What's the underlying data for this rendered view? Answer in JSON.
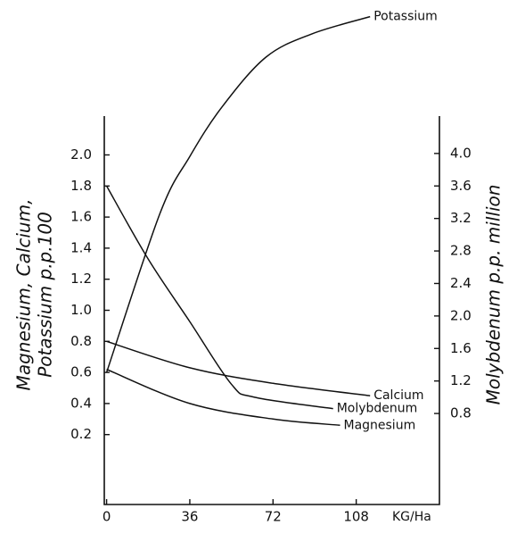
{
  "chart_data": {
    "type": "line",
    "xlabel": "KG/Ha",
    "ylabel": [
      "Magnesium, Calcium,",
      "Potassium  p.p.100"
    ],
    "y2label": "Molybdenum  p.p. million",
    "xlim": [
      -1,
      144
    ],
    "xticks": [
      0,
      36,
      72,
      108
    ],
    "ylim": [
      -0.25,
      2.25
    ],
    "yticks": [
      0.2,
      0.4,
      0.6,
      0.8,
      {
        "value": 1,
        "label": "1.0"
      },
      1.2,
      1.4,
      1.6,
      1.8,
      {
        "value": 2,
        "label": "2.0"
      }
    ],
    "y2lim": [
      -0.32,
      4.46
    ],
    "y2ticks": [
      0.8,
      1.2,
      1.6,
      {
        "value": 2,
        "label": "2.0"
      },
      2.4,
      2.8,
      3.2,
      3.6,
      {
        "value": 4,
        "label": "4.0"
      }
    ],
    "series": [
      {
        "name": "Potassium",
        "color": "#111111",
        "x": [
          0,
          23,
          36,
          50,
          69,
          89,
          114
        ],
        "values": [
          0.6,
          1.62,
          1.99,
          2.31,
          2.63,
          2.78,
          2.89
        ]
      },
      {
        "name": "Calcium",
        "color": "#111111",
        "x": [
          0,
          36,
          72,
          114
        ],
        "values": [
          0.8,
          0.63,
          0.53,
          0.45
        ]
      },
      {
        "name": "Molybdenum",
        "color": "#111111",
        "axis": "y2",
        "x": [
          0,
          18,
          36,
          54,
          64,
          98
        ],
        "values": [
          3.6,
          2.7,
          1.93,
          1.16,
          1.0,
          0.86
        ]
      },
      {
        "name": "Magnesium",
        "color": "#111111",
        "x": [
          0,
          36,
          72,
          101
        ],
        "values": [
          0.62,
          0.4,
          0.3,
          0.26
        ]
      }
    ]
  }
}
